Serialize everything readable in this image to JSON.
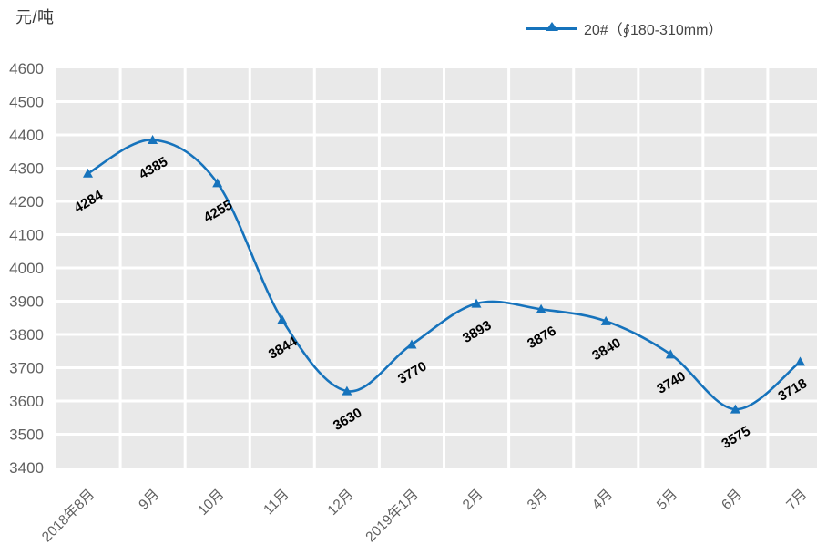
{
  "title": {
    "unit_label": "元/吨"
  },
  "legend": {
    "series_label": "20#（∮180-310mm）",
    "marker_icon": "triangle-up-icon"
  },
  "chart_data": {
    "type": "line",
    "smooth": true,
    "title": "",
    "ylabel": "元/吨",
    "xlabel": "",
    "categories": [
      "2018年8月",
      "9月",
      "10月",
      "11月",
      "12月",
      "2019年1月",
      "2月",
      "3月",
      "4月",
      "5月",
      "6月",
      "7月"
    ],
    "series": [
      {
        "name": "20#（∮180-310mm）",
        "marker": "triangle-up",
        "color": "#1673bc",
        "values": [
          4284,
          4385,
          4255,
          3844,
          3630,
          3770,
          3893,
          3876,
          3840,
          3740,
          3575,
          3718
        ]
      }
    ],
    "yticks": [
      4600,
      4500,
      4400,
      4300,
      4200,
      4100,
      4000,
      3900,
      3800,
      3700,
      3600,
      3500,
      3400
    ],
    "ylim": [
      3400,
      4600
    ],
    "ytick_step": 100,
    "data_labels": true,
    "legend_position": "top-right",
    "grid": {
      "horizontal": true,
      "vertical": true,
      "color": "#ffffff"
    },
    "plot_background": "#e9e9e9",
    "axis_text_color": "#616161",
    "data_label_color": "#000000"
  }
}
